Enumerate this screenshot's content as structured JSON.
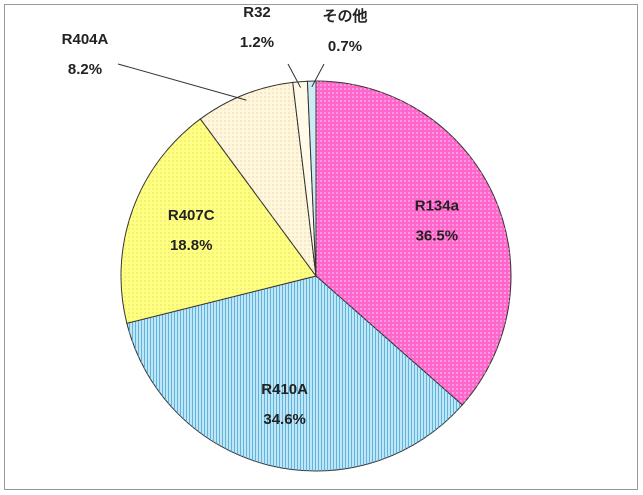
{
  "chart_data": {
    "type": "pie",
    "categories": [
      "R134a",
      "R410A",
      "R407C",
      "R404A",
      "R32",
      "その他"
    ],
    "values": [
      36.5,
      34.6,
      18.8,
      8.2,
      1.2,
      0.7
    ],
    "value_labels": [
      "36.5%",
      "34.6%",
      "18.8%",
      "8.2%",
      "1.2%",
      "0.7%"
    ],
    "colors": [
      "#ff66cc",
      "#bfe6f5",
      "#ffff80",
      "#fff6dc",
      "#fffbe8",
      "#cfeaf7"
    ]
  }
}
